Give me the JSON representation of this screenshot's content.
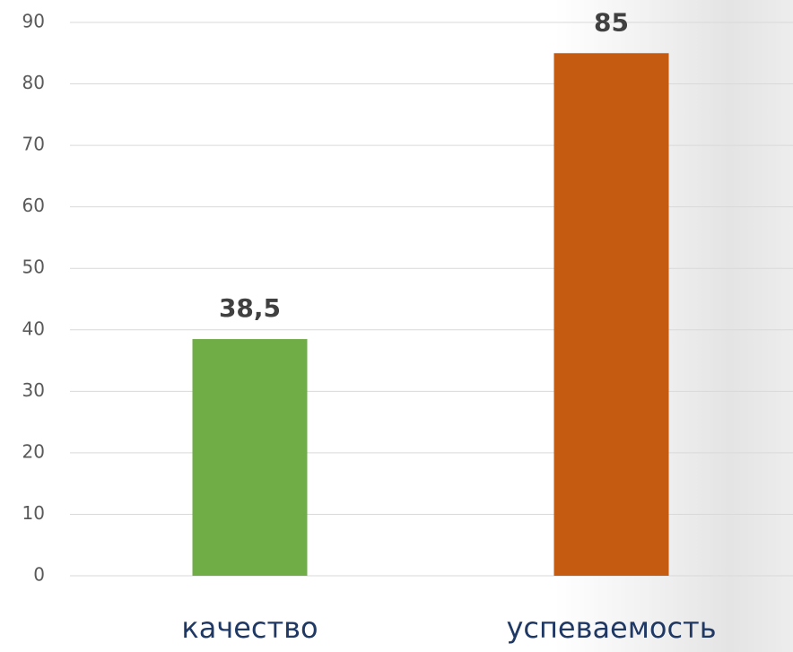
{
  "chart_data": {
    "type": "bar",
    "categories": [
      "качество",
      "успеваемость"
    ],
    "values": [
      38.5,
      85
    ],
    "value_labels": [
      "38,5",
      "85"
    ],
    "colors": [
      "#70ad47",
      "#c55a11"
    ],
    "ylim": [
      0,
      90
    ],
    "yticks": [
      0,
      10,
      20,
      30,
      40,
      50,
      60,
      70,
      80,
      90
    ],
    "grid": true
  }
}
